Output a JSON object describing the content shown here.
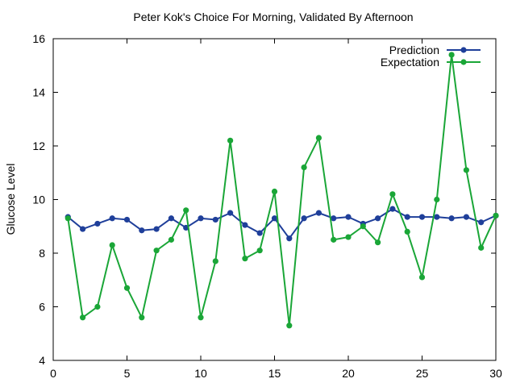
{
  "chart_data": {
    "type": "line",
    "title": "Peter Kok's Choice For Morning, Validated By Afternoon",
    "xlabel": "",
    "ylabel": "Glucose Level",
    "xlim": [
      0,
      30
    ],
    "ylim": [
      4,
      16
    ],
    "xticks": [
      0,
      5,
      10,
      15,
      20,
      25,
      30
    ],
    "yticks": [
      4,
      6,
      8,
      10,
      12,
      14,
      16
    ],
    "grid": false,
    "legend_position": "top-right",
    "x": [
      1,
      2,
      3,
      4,
      5,
      6,
      7,
      8,
      9,
      10,
      11,
      12,
      13,
      14,
      15,
      16,
      17,
      18,
      19,
      20,
      21,
      22,
      23,
      24,
      25,
      26,
      27,
      28,
      29,
      30
    ],
    "series": [
      {
        "name": "Prediction",
        "color": "#1f3f9a",
        "values": [
          9.35,
          8.9,
          9.1,
          9.3,
          9.25,
          8.85,
          8.9,
          9.3,
          8.95,
          9.3,
          9.25,
          9.5,
          9.05,
          8.75,
          9.3,
          8.55,
          9.3,
          9.5,
          9.3,
          9.35,
          9.1,
          9.3,
          9.65,
          9.35,
          9.35,
          9.35,
          9.3,
          9.35,
          9.15,
          9.4
        ]
      },
      {
        "name": "Expectation",
        "color": "#1aa637",
        "values": [
          9.3,
          5.6,
          6.0,
          8.3,
          6.7,
          5.6,
          8.1,
          8.5,
          9.6,
          5.6,
          7.7,
          12.2,
          7.8,
          8.1,
          10.3,
          5.3,
          11.2,
          12.3,
          8.5,
          8.6,
          9.0,
          8.4,
          10.2,
          8.8,
          7.1,
          10.0,
          15.4,
          11.1,
          8.2,
          9.4
        ]
      }
    ]
  }
}
